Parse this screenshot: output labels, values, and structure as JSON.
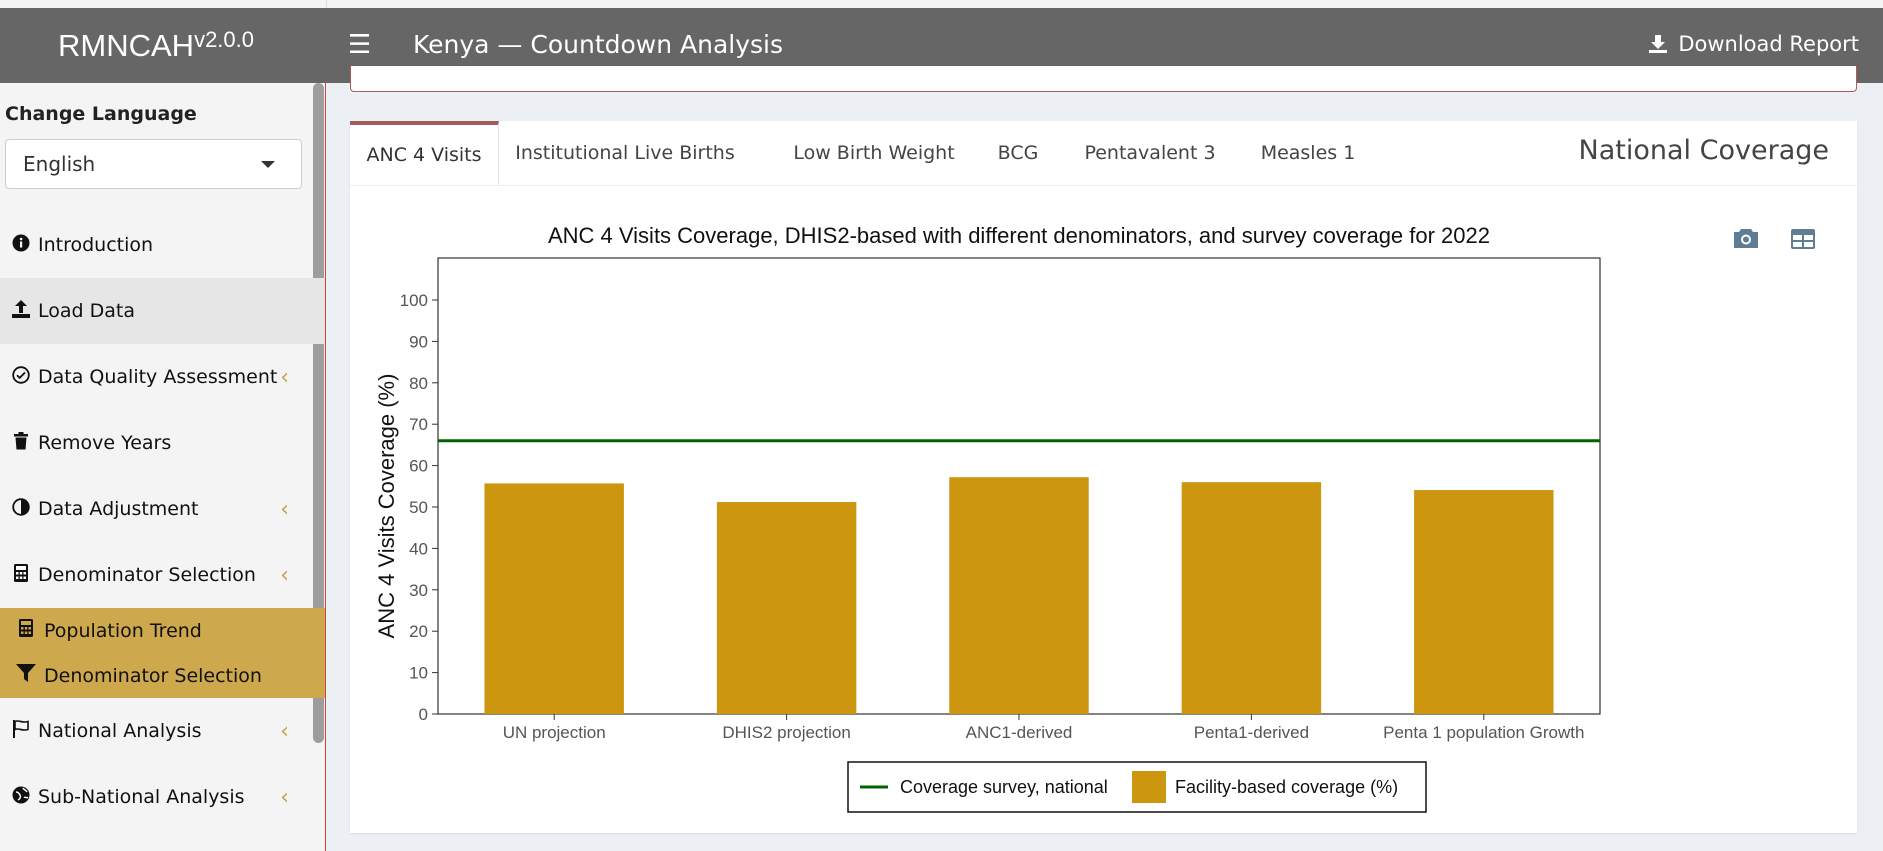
{
  "header": {
    "brand": "RMNCAH",
    "version": "v2.0.0",
    "title": "Kenya — Countdown Analysis",
    "download_label": "Download Report"
  },
  "sidebar": {
    "language_label": "Change Language",
    "language_value": "English",
    "items": [
      {
        "label": "Introduction",
        "icon": "info-circle-icon"
      },
      {
        "label": "Load Data",
        "icon": "upload-icon"
      },
      {
        "label": "Data Quality Assessment",
        "icon": "check-circle-icon"
      },
      {
        "label": "Remove Years",
        "icon": "trash-icon"
      },
      {
        "label": "Data Adjustment",
        "icon": "adjust-icon"
      },
      {
        "label": "Denominator Selection",
        "icon": "calculator-icon"
      },
      {
        "label": "National Analysis",
        "icon": "flag-icon"
      },
      {
        "label": "Sub-National Analysis",
        "icon": "globe-icon"
      }
    ],
    "subitems": [
      {
        "label": "Population Trend",
        "icon": "calculator-icon"
      },
      {
        "label": "Denominator Selection",
        "icon": "filter-icon"
      }
    ]
  },
  "tabs": {
    "items": [
      "ANC 4 Visits",
      "Institutional Live Births",
      "Low Birth Weight",
      "BCG",
      "Pentavalent 3",
      "Measles 1"
    ],
    "active": "ANC 4 Visits",
    "title": "National Coverage"
  },
  "colors": {
    "bar": "#cc960f",
    "survey_line": "#006400",
    "accent": "#cea84d"
  },
  "chart_data": {
    "type": "bar",
    "title": "ANC 4 Visits Coverage, DHIS2-based with different denominators, and survey coverage for 2022",
    "ylabel": "ANC 4 Visits Coverage (%)",
    "xlabel": "",
    "ylim": [
      0,
      100
    ],
    "yticks": [
      0,
      10,
      20,
      30,
      40,
      50,
      60,
      70,
      80,
      90,
      100
    ],
    "categories": [
      "UN projection",
      "DHIS2 projection",
      "ANC1-derived",
      "Penta1-derived",
      "Penta 1 population Growth"
    ],
    "series": [
      {
        "name": "Facility-based coverage (%)",
        "values": [
          55.7,
          51.2,
          57.2,
          56.0,
          54.1
        ]
      }
    ],
    "reference_lines": [
      {
        "name": "Coverage survey, national",
        "value": 66
      }
    ],
    "legend": [
      "Coverage survey, national",
      "Facility-based coverage (%)"
    ],
    "legend_position": "bottom"
  }
}
